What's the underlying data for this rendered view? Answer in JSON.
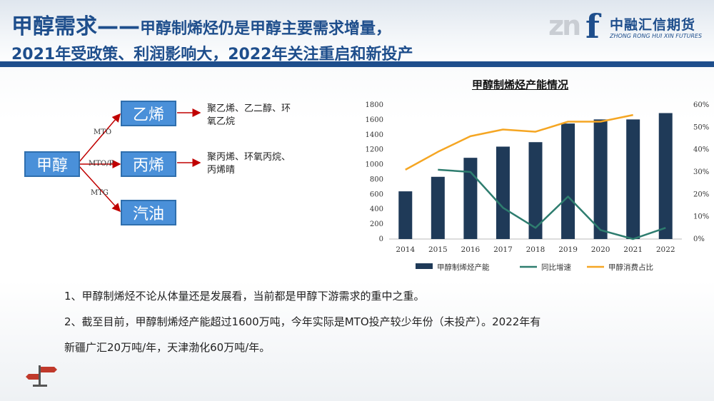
{
  "header": {
    "title_big": "甲醇需求——",
    "title_rest": "甲醇制烯烃仍是甲醇主要需求增量，",
    "title_line2": "2021年受政策、利润影响大，2022年关注重启和新投产"
  },
  "logo": {
    "mark": "zn",
    "mark_f": "f",
    "name_cn": "中融汇信期货",
    "name_en": "ZHONG RONG HUI XIN FUTURES"
  },
  "flow": {
    "source": "甲醇",
    "targets": [
      {
        "label": "乙烯",
        "edge": "MTO",
        "desc_line1": "聚乙烯、乙二醇、环",
        "desc_line2": "氧乙烷"
      },
      {
        "label": "丙烯",
        "edge": "MTO/P",
        "desc_line1": "聚丙烯、环氧丙烷、",
        "desc_line2": "丙烯晴"
      },
      {
        "label": "汽油",
        "edge": "MTG",
        "desc_line1": "",
        "desc_line2": ""
      }
    ]
  },
  "colors": {
    "bar": "#1f3a58",
    "yoy": "#2e7d6f",
    "share": "#f5a623",
    "node": "#4a90d9",
    "arrow": "#c00000"
  },
  "chart_data": {
    "type": "bar",
    "title": "甲醇制烯烃产能情况",
    "categories": [
      "2014",
      "2015",
      "2016",
      "2017",
      "2018",
      "2019",
      "2020",
      "2021",
      "2022"
    ],
    "series": [
      {
        "name": "甲醇制烯烃产能",
        "type": "bar",
        "axis": "left",
        "values": [
          640,
          835,
          1090,
          1240,
          1300,
          1550,
          1605,
          1605,
          1690
        ]
      },
      {
        "name": "同比增速",
        "type": "line",
        "axis": "right",
        "values": [
          null,
          0.31,
          0.3,
          0.14,
          0.05,
          0.19,
          0.04,
          0.0,
          0.05
        ]
      },
      {
        "name": "甲醇消费占比",
        "type": "line",
        "axis": "right",
        "values": [
          0.31,
          0.39,
          0.46,
          0.49,
          0.48,
          0.525,
          0.525,
          0.555,
          null
        ]
      }
    ],
    "y_left": {
      "min": 0,
      "max": 1800,
      "ticks": [
        "0",
        "200",
        "400",
        "600",
        "800",
        "1000",
        "1200",
        "1400",
        "1600",
        "1800"
      ]
    },
    "y_right": {
      "min": 0,
      "max": 0.6,
      "ticks": [
        "0%",
        "10%",
        "20%",
        "30%",
        "40%",
        "50%",
        "60%"
      ]
    },
    "legend": "bottom"
  },
  "body": {
    "line1": "1、甲醇制烯烃不论从体量还是发展看，当前都是甲醇下游需求的重中之重。",
    "line2": "2、截至目前，甲醇制烯烃产能超过1600万吨，今年实际是MTO投产较少年份（未投产）。2022年有",
    "line3": "新疆广汇20万吨/年，天津渤化60万吨/年。"
  }
}
